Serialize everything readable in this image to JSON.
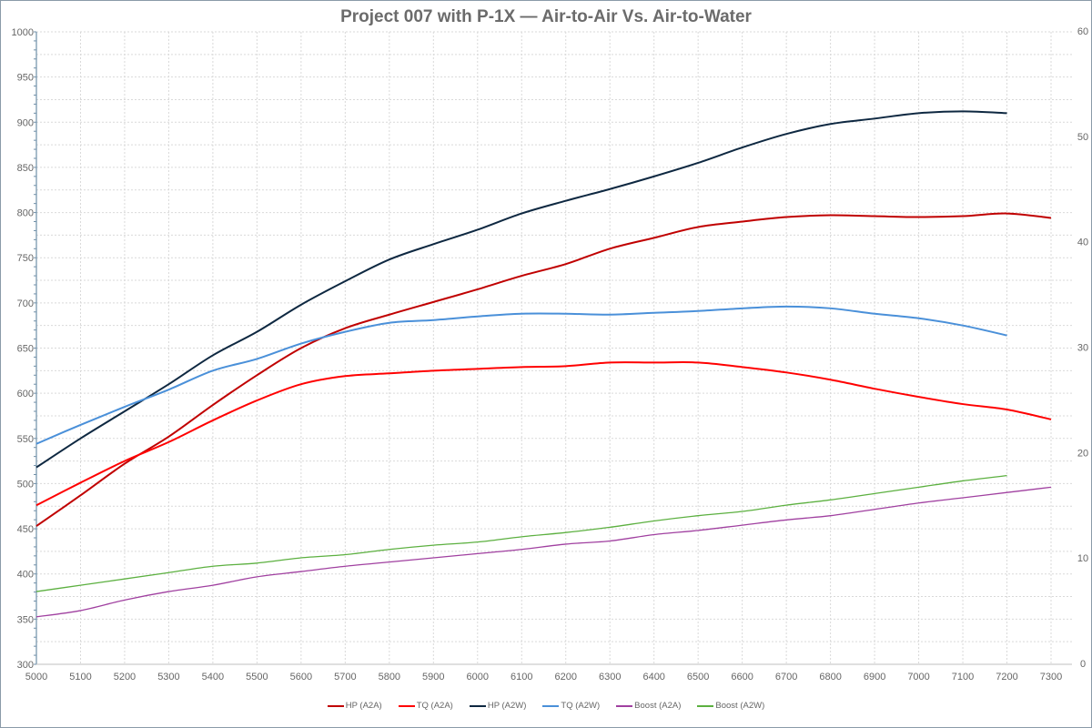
{
  "chart_data": {
    "type": "line",
    "title": "Project 007 with P-1X — Air-to-Air Vs. Air-to-Water",
    "xlabel": "",
    "ylabel": "",
    "y2label": "",
    "x": [
      5000,
      5100,
      5200,
      5300,
      5400,
      5500,
      5600,
      5700,
      5800,
      5900,
      6000,
      6100,
      6200,
      6300,
      6400,
      6500,
      6600,
      6700,
      6800,
      6900,
      7000,
      7100,
      7200,
      7300
    ],
    "xticks": [
      5000,
      5100,
      5200,
      5300,
      5400,
      5500,
      5600,
      5700,
      5800,
      5900,
      6000,
      6100,
      6200,
      6300,
      6400,
      6500,
      6600,
      6700,
      6800,
      6900,
      7000,
      7100,
      7200,
      7300
    ],
    "ylim": [
      300,
      1000
    ],
    "yticks": [
      300,
      350,
      400,
      450,
      500,
      550,
      600,
      650,
      700,
      750,
      800,
      850,
      900,
      950,
      1000
    ],
    "y2lim": [
      0,
      60
    ],
    "y2ticks": [
      0,
      10,
      20,
      30,
      40,
      50,
      60
    ],
    "grid": true,
    "legend_position": "bottom",
    "series": [
      {
        "name": "HP (A2A)",
        "axis": "left",
        "color": "#c00000",
        "values": [
          453,
          487,
          522,
          552,
          587,
          620,
          650,
          672,
          687,
          701,
          715,
          730,
          743,
          760,
          772,
          784,
          790,
          795,
          797,
          796,
          795,
          796,
          799,
          794
        ]
      },
      {
        "name": "TQ (A2A)",
        "axis": "left",
        "color": "#ff0000",
        "values": [
          476,
          501,
          525,
          546,
          570,
          592,
          610,
          619,
          622,
          625,
          627,
          629,
          630,
          634,
          634,
          634,
          629,
          623,
          615,
          605,
          596,
          588,
          582,
          571
        ]
      },
      {
        "name": "HP (A2W)",
        "axis": "left",
        "color": "#0e2841",
        "values": [
          518,
          550,
          580,
          610,
          642,
          668,
          698,
          724,
          748,
          765,
          781,
          799,
          813,
          826,
          840,
          855,
          872,
          887,
          898,
          904,
          910,
          912,
          910,
          null
        ]
      },
      {
        "name": "TQ (A2W)",
        "axis": "left",
        "color": "#4a90d9",
        "values": [
          544,
          565,
          585,
          604,
          625,
          638,
          655,
          668,
          678,
          681,
          685,
          688,
          688,
          687,
          689,
          691,
          694,
          696,
          694,
          688,
          683,
          675,
          664,
          null
        ]
      },
      {
        "name": "Boost (A2A)",
        "axis": "right",
        "color": "#a040a0",
        "values": [
          4.5,
          5.1,
          6.1,
          6.9,
          7.5,
          8.3,
          8.8,
          9.3,
          9.7,
          10.1,
          10.5,
          10.9,
          11.4,
          11.7,
          12.3,
          12.7,
          13.2,
          13.7,
          14.1,
          14.7,
          15.3,
          15.8,
          16.3,
          16.8
        ]
      },
      {
        "name": "Boost (A2W)",
        "axis": "right",
        "color": "#5cb040",
        "values": [
          6.9,
          7.5,
          8.1,
          8.7,
          9.3,
          9.6,
          10.1,
          10.4,
          10.9,
          11.3,
          11.6,
          12.1,
          12.5,
          13.0,
          13.6,
          14.1,
          14.5,
          15.1,
          15.6,
          16.2,
          16.8,
          17.4,
          17.9,
          null
        ]
      }
    ]
  }
}
